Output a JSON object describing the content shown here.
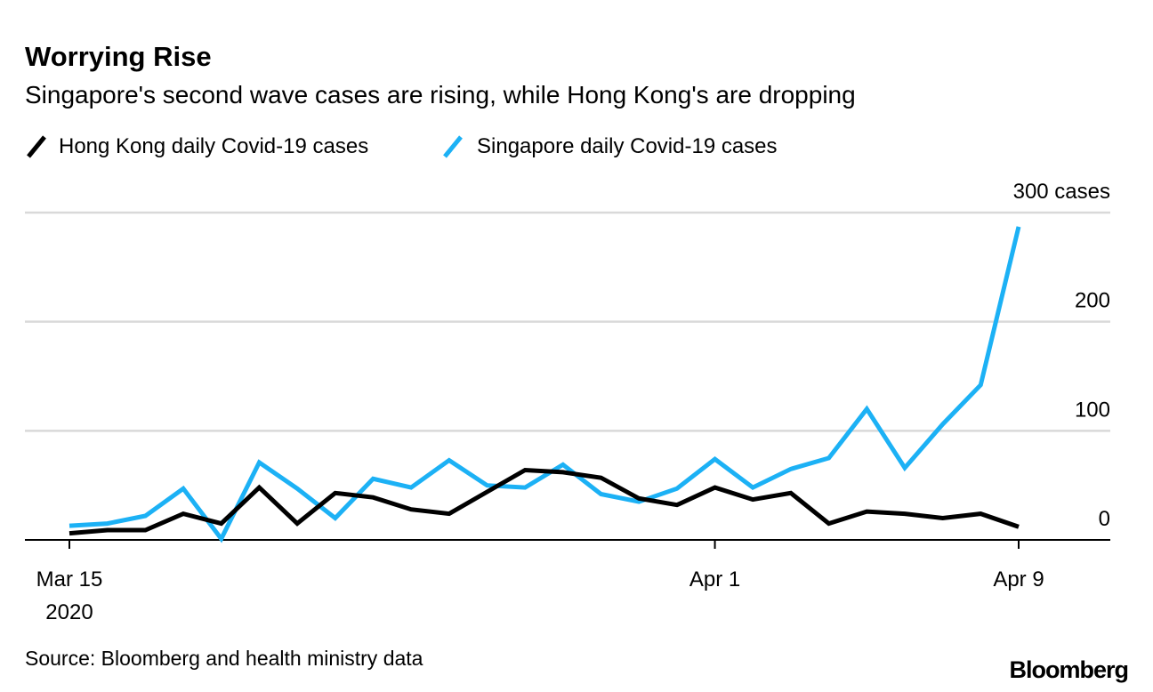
{
  "chart_data": {
    "type": "line",
    "title": "Worrying Rise",
    "subtitle": "Singapore's second wave cases are rising, while Hong Kong's are dropping",
    "x": [
      "Mar 15",
      "Mar 16",
      "Mar 17",
      "Mar 18",
      "Mar 19",
      "Mar 20",
      "Mar 21",
      "Mar 22",
      "Mar 23",
      "Mar 24",
      "Mar 25",
      "Mar 26",
      "Mar 27",
      "Mar 28",
      "Mar 29",
      "Mar 30",
      "Mar 31",
      "Apr 1",
      "Apr 2",
      "Apr 3",
      "Apr 4",
      "Apr 5",
      "Apr 6",
      "Apr 7",
      "Apr 8",
      "Apr 9"
    ],
    "series": [
      {
        "name": "Hong Kong daily Covid-19 cases",
        "color": "#000000",
        "values": [
          6,
          9,
          9,
          24,
          15,
          48,
          15,
          43,
          39,
          28,
          24,
          44,
          64,
          62,
          57,
          38,
          32,
          48,
          37,
          43,
          15,
          26,
          24,
          20,
          24,
          12
        ]
      },
      {
        "name": "Singapore daily Covid-19 cases",
        "color": "#1cb1f5",
        "values": [
          13,
          15,
          22,
          47,
          1,
          71,
          47,
          20,
          56,
          48,
          73,
          50,
          48,
          69,
          42,
          35,
          47,
          74,
          48,
          65,
          75,
          120,
          66,
          106,
          142,
          287
        ]
      }
    ],
    "ylim": [
      0,
      300
    ],
    "yticks": [
      {
        "value": 300,
        "label": "300 cases"
      },
      {
        "value": 200,
        "label": "200"
      },
      {
        "value": 100,
        "label": "100"
      },
      {
        "value": 0,
        "label": "0"
      }
    ],
    "xticks": [
      {
        "index": 0,
        "label": "Mar 15",
        "sublabel": "2020"
      },
      {
        "index": 17,
        "label": "Apr 1",
        "sublabel": ""
      },
      {
        "index": 25,
        "label": "Apr 9",
        "sublabel": ""
      }
    ],
    "grid": true,
    "legend_position": "top-left",
    "source": "Source: Bloomberg and health ministry data",
    "logo": "Bloomberg"
  }
}
